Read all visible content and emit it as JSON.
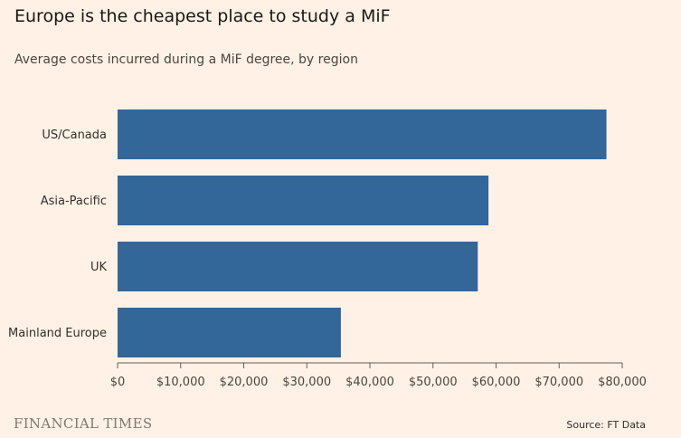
{
  "title": "Europe is the cheapest place to study a MiF",
  "subtitle": "Average costs incurred during a MiF degree, by region",
  "chart_data": {
    "type": "bar",
    "orientation": "horizontal",
    "title": "Europe is the cheapest place to study a MiF",
    "subtitle": "Average costs incurred during a MiF degree, by region",
    "categories": [
      "US/Canada",
      "Asia-Pacific",
      "UK",
      "Mainland Europe"
    ],
    "values": [
      77500,
      58800,
      57100,
      35400
    ],
    "xlabel": "",
    "ylabel": "",
    "xlim": [
      0,
      80000
    ],
    "ticks": [
      0,
      10000,
      20000,
      30000,
      40000,
      50000,
      60000,
      70000,
      80000
    ],
    "tick_labels": [
      "$0",
      "$10,000",
      "$20,000",
      "$30,000",
      "$40,000",
      "$50,000",
      "$60,000",
      "$70,000",
      "$80,000"
    ],
    "bar_color": "#336699",
    "grid": false
  },
  "footer": {
    "brand": "FINANCIAL TIMES",
    "source": "Source: FT Data"
  }
}
